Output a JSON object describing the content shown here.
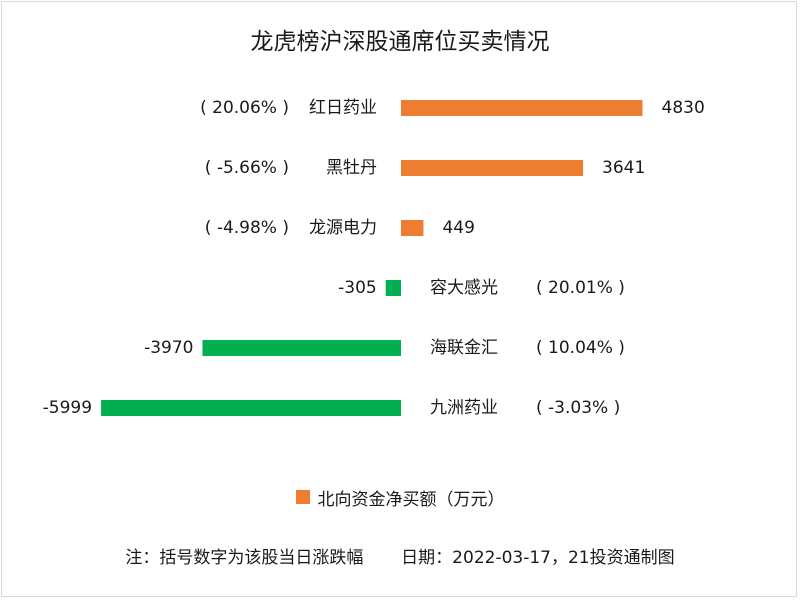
{
  "chart_data": {
    "type": "bar",
    "orientation": "horizontal",
    "title": "龙虎榜沪深股通席位买卖情况",
    "categories": [
      "红日药业",
      "黑牡丹",
      "龙源电力",
      "容大感光",
      "海联金汇",
      "九洲药业"
    ],
    "change_labels": [
      "( 20.06% )",
      "( -5.66% )",
      "( -4.98% )",
      "( 20.01% )",
      "( 10.04% )",
      "( -3.03% )"
    ],
    "series": [
      {
        "name": "北向资金净买额（万元）",
        "values": [
          4830,
          3641,
          449,
          -305,
          -3970,
          -5999
        ]
      }
    ],
    "value_labels": [
      "4830",
      "3641",
      "449",
      "-305",
      "-3970",
      "-5999"
    ],
    "colors": {
      "positive": "#ed7d31",
      "negative": "#00b050"
    },
    "legend_position": "bottom",
    "grid": false
  },
  "footnote": "注：括号数字为该股当日涨跌幅       日期：2022-03-17，21投资通制图"
}
